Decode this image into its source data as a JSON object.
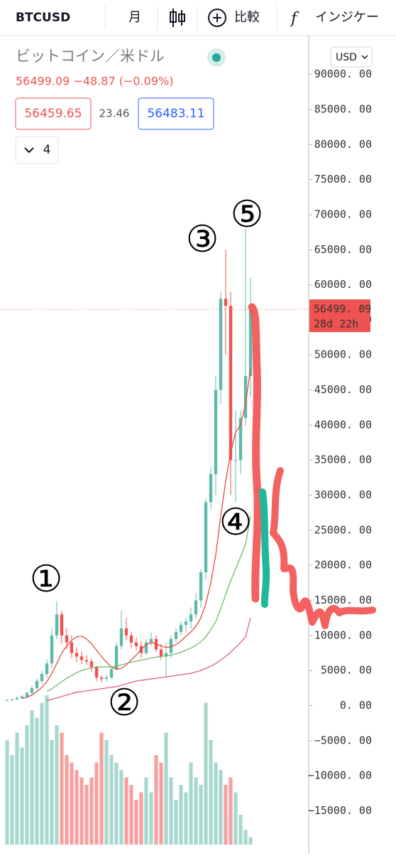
{
  "toolbar": {
    "symbol": "BTCUSD",
    "interval": "月",
    "compare": "比較",
    "indicators": "インジケー"
  },
  "legend": {
    "name": "ビットコイン／米ドル",
    "quote": "56499.09  −48.87 (−0.09%)",
    "bid": "56459.65",
    "spread": "23.46",
    "ask": "56483.11",
    "count": "4"
  },
  "currency": "USD",
  "price_tag": {
    "price": "56499. 09",
    "countdown": "28d 22h"
  },
  "annotations": [
    "①",
    "②",
    "③",
    "④",
    "⑤"
  ],
  "chart_data": {
    "type": "candlestick",
    "ylim": [
      -18000,
      100000
    ],
    "yticks": [
      {
        "value": -15000,
        "label": "−15000. 00"
      },
      {
        "value": -10000,
        "label": "−10000. 00"
      },
      {
        "value": -5000,
        "label": "−5000. 00"
      },
      {
        "value": 0,
        "label": "0. 00"
      },
      {
        "value": 5000,
        "label": "5000. 00"
      },
      {
        "value": 10000,
        "label": "10000. 00"
      },
      {
        "value": 15000,
        "label": "15000. 00"
      },
      {
        "value": 20000,
        "label": "20000. 00"
      },
      {
        "value": 25000,
        "label": "25000. 00"
      },
      {
        "value": 30000,
        "label": "30000. 00"
      },
      {
        "value": 35000,
        "label": "35000. 00"
      },
      {
        "value": 40000,
        "label": "40000. 00"
      },
      {
        "value": 45000,
        "label": "45000. 00"
      },
      {
        "value": 50000,
        "label": "50000. 00"
      },
      {
        "value": 55000,
        "label": "55000. 00"
      },
      {
        "value": 60000,
        "label": "60000. 00"
      },
      {
        "value": 65000,
        "label": "65000. 00"
      },
      {
        "value": 70000,
        "label": "70000. 00"
      },
      {
        "value": 75000,
        "label": "75000. 00"
      },
      {
        "value": 80000,
        "label": "80000. 00"
      },
      {
        "value": 85000,
        "label": "85000. 00"
      },
      {
        "value": 90000,
        "label": "90000. 00"
      }
    ],
    "last": 56499.09,
    "up_color": "#5fb8a8",
    "down_color": "#ef5350",
    "ohlc": [
      [
        700,
        900,
        600,
        800
      ],
      [
        800,
        1000,
        700,
        900
      ],
      [
        900,
        1250,
        800,
        1100
      ],
      [
        1100,
        1500,
        950,
        1300
      ],
      [
        1300,
        2000,
        1150,
        1800
      ],
      [
        1800,
        2800,
        1600,
        2500
      ],
      [
        2500,
        3900,
        2200,
        3500
      ],
      [
        3500,
        5000,
        3100,
        4500
      ],
      [
        4500,
        6600,
        4000,
        6000
      ],
      [
        6000,
        11000,
        5300,
        10000
      ],
      [
        10000,
        14900,
        9500,
        13000
      ],
      [
        13000,
        13500,
        8800,
        10000
      ],
      [
        10000,
        11000,
        8000,
        9000
      ],
      [
        9000,
        10000,
        6800,
        7500
      ],
      [
        7500,
        8300,
        6200,
        7000
      ],
      [
        7000,
        7700,
        5900,
        6500
      ],
      [
        6500,
        7200,
        5800,
        6300
      ],
      [
        6300,
        6700,
        4800,
        5500
      ],
      [
        5500,
        5700,
        3500,
        4000
      ],
      [
        4000,
        4300,
        3300,
        3800
      ],
      [
        3800,
        4400,
        3400,
        4000
      ],
      [
        4000,
        5600,
        3800,
        5200
      ],
      [
        5200,
        9000,
        5000,
        8500
      ],
      [
        8500,
        13500,
        8000,
        11000
      ],
      [
        11000,
        12500,
        9300,
        10000
      ],
      [
        10000,
        10500,
        8200,
        9000
      ],
      [
        9000,
        9800,
        7900,
        8500
      ],
      [
        8500,
        9200,
        6800,
        7500
      ],
      [
        7500,
        9500,
        7200,
        9000
      ],
      [
        9000,
        10400,
        8500,
        9500
      ],
      [
        9500,
        10000,
        7600,
        8000
      ],
      [
        8000,
        8800,
        6500,
        7000
      ],
      [
        7000,
        9000,
        4000,
        7500
      ],
      [
        7500,
        10000,
        6800,
        9500
      ],
      [
        9500,
        11000,
        9000,
        10500
      ],
      [
        10500,
        12000,
        10000,
        11500
      ],
      [
        11500,
        12500,
        10500,
        12000
      ],
      [
        12000,
        14000,
        11000,
        13000
      ],
      [
        13000,
        16000,
        12500,
        15000
      ],
      [
        15000,
        19500,
        14000,
        19000
      ],
      [
        19000,
        29500,
        18000,
        29000
      ],
      [
        29000,
        34000,
        28000,
        33000
      ],
      [
        33000,
        47000,
        30000,
        45000
      ],
      [
        45000,
        59000,
        43000,
        58000
      ],
      [
        58000,
        65000,
        50000,
        57000
      ],
      [
        57000,
        59000,
        30000,
        35000
      ],
      [
        35000,
        42000,
        29000,
        35000
      ],
      [
        35000,
        42000,
        33000,
        41000
      ],
      [
        41000,
        68000,
        40000,
        47000
      ],
      [
        47000,
        61000,
        44000,
        56499
      ]
    ],
    "volume": [
      70,
      60,
      75,
      65,
      80,
      90,
      85,
      95,
      100,
      70,
      80,
      75,
      60,
      55,
      50,
      45,
      40,
      45,
      55,
      75,
      70,
      60,
      55,
      50,
      45,
      40,
      30,
      35,
      45,
      35,
      60,
      55,
      75,
      45,
      30,
      40,
      35,
      55,
      45,
      40,
      95,
      70,
      55,
      50,
      40,
      45,
      35,
      20,
      10,
      5
    ],
    "series": [
      {
        "color": "#e04b45",
        "values": [
          null,
          null,
          null,
          1000,
          1200,
          1500,
          2000,
          2600,
          3400,
          4600,
          6000,
          7500,
          8500,
          9300,
          9800,
          9900,
          9500,
          8800,
          7900,
          7000,
          6200,
          5500,
          5200,
          5300,
          5800,
          6500,
          7200,
          8000,
          8700,
          9000,
          8800,
          8500,
          8300,
          8400,
          8700,
          9200,
          9900,
          10500,
          11300,
          12500,
          14500,
          17500,
          21500,
          27000,
          32000,
          36000,
          39000,
          40000,
          43000,
          48000
        ]
      },
      {
        "color": "#6dbb6a",
        "values": [
          null,
          null,
          null,
          null,
          null,
          null,
          null,
          null,
          2000,
          2400,
          2900,
          3400,
          3900,
          4300,
          4700,
          5000,
          5200,
          5400,
          5500,
          5500,
          5500,
          5500,
          5600,
          5800,
          6000,
          6200,
          6300,
          6500,
          6600,
          6800,
          6900,
          7000,
          7100,
          7200,
          7400,
          7600,
          7900,
          8200,
          8600,
          9100,
          9800,
          10800,
          12000,
          13800,
          15800,
          17800,
          19500,
          21200,
          23000,
          27000
        ]
      },
      {
        "color": "#e0607e",
        "values": [
          null,
          null,
          null,
          null,
          null,
          null,
          null,
          null,
          700,
          900,
          1100,
          1300,
          1500,
          1700,
          1900,
          2000,
          2100,
          2200,
          2300,
          2400,
          2500,
          2600,
          2700,
          2900,
          3100,
          3300,
          3500,
          3600,
          3700,
          3800,
          3900,
          4000,
          4100,
          4200,
          4300,
          4400,
          4500,
          4600,
          4800,
          5000,
          5300,
          5600,
          6000,
          6500,
          7000,
          7600,
          8300,
          9000,
          9800,
          12500
        ]
      }
    ]
  }
}
